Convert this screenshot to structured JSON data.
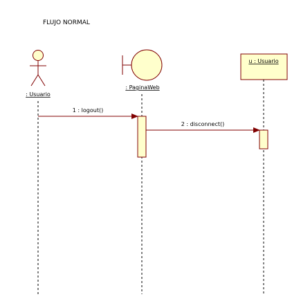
{
  "title": "FLUJO NORMAL",
  "colors": {
    "actor_fill": "#FFFFCC",
    "stroke": "#800000",
    "arrow": "#800000",
    "lifeline": "#000000",
    "text": "#000000",
    "background": "#FFFFFF"
  },
  "participants": [
    {
      "id": "actor",
      "kind": "actor",
      "label": ": Usuario"
    },
    {
      "id": "boundary",
      "kind": "boundary",
      "label": ": PaginaWeb"
    },
    {
      "id": "object",
      "kind": "object",
      "label": "u : Usuario"
    }
  ],
  "messages": [
    {
      "from": "actor",
      "to": "boundary",
      "label": "1 : logout()"
    },
    {
      "from": "boundary",
      "to": "object",
      "label": "2 : disconnect()"
    }
  ]
}
